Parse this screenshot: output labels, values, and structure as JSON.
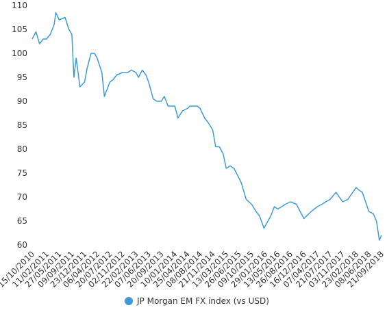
{
  "chart_data": {
    "type": "line",
    "x": [
      "15/10/2010",
      "15/11/2010",
      "15/12/2010",
      "15/01/2011",
      "11/02/2011",
      "15/03/2011",
      "15/04/2011",
      "29/04/2011",
      "27/05/2011",
      "15/07/2011",
      "15/08/2011",
      "09/09/2011",
      "26/09/2011",
      "15/10/2011",
      "15/11/2011",
      "23/12/2011",
      "15/01/2012",
      "15/02/2012",
      "15/03/2012",
      "06/04/2012",
      "15/05/2012",
      "05/06/2012",
      "20/07/2012",
      "15/08/2012",
      "15/09/2012",
      "02/11/2012",
      "15/12/2012",
      "15/01/2013",
      "22/02/2013",
      "15/03/2013",
      "15/04/2013",
      "15/05/2013",
      "07/06/2013",
      "15/07/2013",
      "15/08/2013",
      "20/09/2013",
      "15/10/2013",
      "15/11/2013",
      "15/12/2013",
      "10/01/2014",
      "05/02/2014",
      "15/03/2014",
      "25/04/2014",
      "15/05/2014",
      "15/07/2014",
      "08/08/2014",
      "15/09/2014",
      "15/10/2014",
      "21/11/2014",
      "15/12/2014",
      "15/01/2015",
      "15/02/2015",
      "13/03/2015",
      "15/04/2015",
      "15/05/2015",
      "26/06/2015",
      "15/07/2015",
      "25/08/2015",
      "09/10/2015",
      "15/11/2015",
      "15/12/2015",
      "20/01/2016",
      "15/03/2016",
      "15/04/2016",
      "13/05/2016",
      "15/06/2016",
      "15/07/2016",
      "26/08/2016",
      "15/10/2016",
      "15/11/2016",
      "16/12/2016",
      "15/02/2017",
      "07/04/2017",
      "15/05/2017",
      "15/06/2017",
      "21/07/2017",
      "08/09/2017",
      "03/11/2017",
      "15/12/2017",
      "26/01/2018",
      "23/02/2018",
      "15/03/2018",
      "15/04/2018",
      "08/06/2018",
      "15/07/2018",
      "10/08/2018",
      "03/09/2018",
      "21/09/2018"
    ],
    "series": [
      {
        "name": "JP Morgan EM FX index (vs USD)",
        "color": "#3d9ad8",
        "values": [
          103,
          104.5,
          102,
          103,
          103,
          104,
          106,
          108.5,
          107,
          107.5,
          105,
          104,
          95,
          99,
          93,
          94,
          97,
          100,
          100,
          99,
          96,
          91,
          94,
          94.5,
          95.5,
          96,
          96,
          96.5,
          96,
          95,
          96.5,
          95.5,
          94,
          90.5,
          90,
          90,
          91,
          89,
          89,
          89,
          86.5,
          88,
          88.5,
          89,
          89,
          88.5,
          86.5,
          85.5,
          84,
          80.5,
          80.5,
          79,
          76,
          76.5,
          76,
          74,
          73,
          69.5,
          68.5,
          67,
          66,
          63.5,
          66,
          68,
          67.5,
          68,
          68.5,
          69,
          68.5,
          67,
          65.5,
          67,
          68,
          68.5,
          69,
          69.5,
          71,
          69,
          69.5,
          71,
          72,
          71.5,
          71,
          67,
          66.5,
          65,
          61,
          62
        ]
      }
    ],
    "xlim": [
      "15/10/2010",
      "21/09/2018"
    ],
    "xticks": [
      "15/10/2010",
      "11/02/2011",
      "27/05/2011",
      "09/09/2011",
      "23/12/2011",
      "06/04/2012",
      "20/07/2012",
      "02/11/2012",
      "22/02/2013",
      "07/06/2013",
      "20/09/2013",
      "10/01/2014",
      "25/04/2014",
      "08/08/2014",
      "21/11/2014",
      "13/03/2015",
      "26/06/2015",
      "09/10/2015",
      "29/01/2016",
      "13/05/2016",
      "26/08/2016",
      "16/12/2016",
      "07/04/2017",
      "21/07/2017",
      "03/11/2017",
      "23/02/2018",
      "08/06/2018",
      "21/09/2018"
    ],
    "ylim": [
      60,
      110
    ],
    "yticks": [
      60,
      65,
      70,
      75,
      80,
      85,
      90,
      95,
      100,
      105,
      110
    ],
    "legend": "bottom"
  }
}
